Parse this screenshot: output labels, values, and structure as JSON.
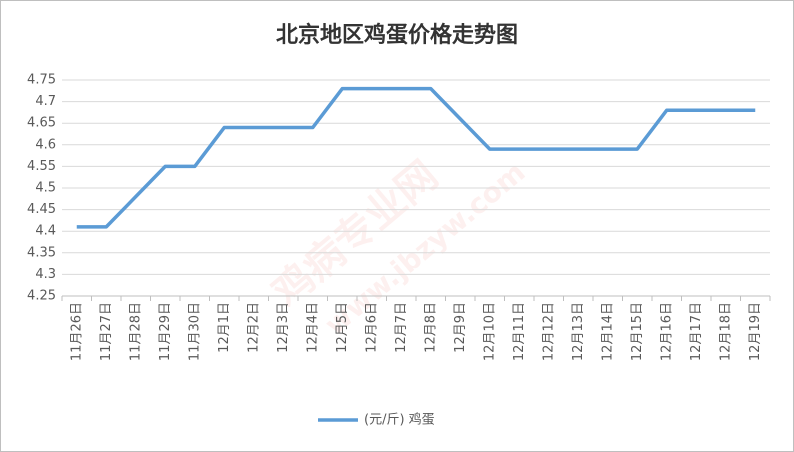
{
  "chart_data": {
    "type": "line",
    "title": "北京地区鸡蛋价格走势图",
    "watermark": [
      "鸡病专业网",
      "www.jbzyw.com"
    ],
    "categories": [
      "11月26日",
      "11月27日",
      "11月28日",
      "11月29日",
      "11月30日",
      "12月1日",
      "12月2日",
      "12月3日",
      "12月4日",
      "12月5日",
      "12月6日",
      "12月7日",
      "12月8日",
      "12月9日",
      "12月10日",
      "12月11日",
      "12月12日",
      "12月13日",
      "12月14日",
      "12月15日",
      "12月16日",
      "12月17日",
      "12月18日",
      "12月19日"
    ],
    "series": [
      {
        "name": "(元/斤)  鸡蛋",
        "color": "#5b9bd5",
        "values": [
          4.41,
          4.41,
          4.48,
          4.55,
          4.55,
          4.64,
          4.64,
          4.64,
          4.64,
          4.73,
          4.73,
          4.73,
          4.73,
          4.66,
          4.59,
          4.59,
          4.59,
          4.59,
          4.59,
          4.59,
          4.68,
          4.68,
          4.68,
          4.68
        ]
      }
    ],
    "ylim": [
      4.25,
      4.75
    ],
    "yticks": [
      4.25,
      4.3,
      4.35,
      4.4,
      4.45,
      4.5,
      4.55,
      4.6,
      4.65,
      4.7,
      4.75
    ],
    "grid": true,
    "legend": "bottom"
  }
}
